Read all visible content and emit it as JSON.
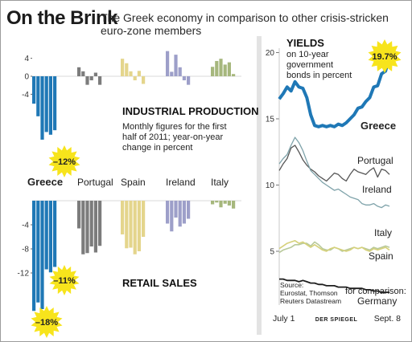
{
  "header": {
    "title": "On the Brink",
    "subtitle": "The Greek economy in comparison to other crisis-stricken euro-zone members"
  },
  "chart_data": [
    {
      "type": "bar",
      "title": "INDUSTRIAL PRODUCTION",
      "description": [
        "Monthly figures for the first",
        "half of 2011; year-on-year",
        "change in percent"
      ],
      "yticks": [
        "4",
        "0",
        "-4"
      ],
      "ylim": [
        -14.5,
        6.5
      ],
      "countries": [
        {
          "name": "Greece",
          "color": "#1f78b6",
          "values": [
            -6.1,
            -8.9,
            -14.1,
            -12.4,
            -13.0,
            -12.0
          ]
        },
        {
          "name": "Portugal",
          "color": "#7c7c7c",
          "values": [
            2.0,
            1.1,
            -1.9,
            -0.9,
            0.8,
            -1.9
          ]
        },
        {
          "name": "Spain",
          "color": "#e4d58c",
          "values": [
            3.9,
            2.9,
            1.1,
            -0.9,
            1.2,
            -1.7
          ]
        },
        {
          "name": "Ireland",
          "color": "#9d9fc9",
          "values": [
            5.6,
            1.0,
            4.8,
            2.0,
            -0.9,
            -1.9
          ]
        },
        {
          "name": "Italy",
          "color": "#a6b77d",
          "values": [
            2.1,
            3.4,
            3.9,
            2.6,
            3.1,
            0.5
          ]
        }
      ],
      "callout": {
        "country": "Greece",
        "label": "–12%"
      }
    },
    {
      "type": "bar",
      "title": "RETAIL SALES",
      "yticks": [
        "-4",
        "-8",
        "-12"
      ],
      "ylim": [
        -18.5,
        0
      ],
      "countries": [
        {
          "name": "Greece",
          "color": "#1f78b6",
          "values": [
            -18.3,
            -16.9,
            -18.0,
            -11.4,
            -11.9,
            -11.0
          ]
        },
        {
          "name": "Portugal",
          "color": "#7c7c7c",
          "values": [
            -4.6,
            -8.9,
            -8.7,
            -7.6,
            -8.6,
            -7.5
          ]
        },
        {
          "name": "Spain",
          "color": "#e4d58c",
          "values": [
            -5.6,
            -7.9,
            -7.8,
            -8.9,
            -8.4,
            -6.0
          ]
        },
        {
          "name": "Ireland",
          "color": "#9d9fc9",
          "values": [
            -3.8,
            -5.1,
            -2.8,
            -4.3,
            -3.8,
            -3.0
          ]
        },
        {
          "name": "Italy",
          "color": "#a6b77d",
          "values": [
            -0.6,
            -0.3,
            -1.1,
            -0.5,
            -0.8,
            -1.3
          ]
        }
      ],
      "callout": {
        "country": "Greece",
        "labels": [
          "–11%",
          "–18%"
        ]
      }
    },
    {
      "type": "line",
      "title": "YIELDS",
      "description": [
        "on 10-year",
        "government",
        "bonds in percent"
      ],
      "yticks": [
        "20",
        "15",
        "10",
        "5"
      ],
      "ylim": [
        1.5,
        22
      ],
      "x_labels": [
        "July 1",
        "Sept. 8"
      ],
      "series": [
        {
          "name": "Greece",
          "color": "#1f78b6",
          "values": [
            16.5,
            16.9,
            17.4,
            17.1,
            17.8,
            17.4,
            17.3,
            16.6,
            15.3,
            14.5,
            14.4,
            14.5,
            14.4,
            14.5,
            14.4,
            14.6,
            14.5,
            14.7,
            15.0,
            15.3,
            15.8,
            15.9,
            16.3,
            16.6,
            17.4,
            17.5,
            18.4,
            18.6,
            19.7
          ],
          "callout": "19.7%"
        },
        {
          "name": "Portugal",
          "color": "#555555",
          "values": [
            11.1,
            11.6,
            12.0,
            12.8,
            13.0,
            12.5,
            11.9,
            11.5,
            11.2,
            11.0,
            10.7,
            10.5,
            10.3,
            10.6,
            10.9,
            10.8,
            10.5,
            10.3,
            10.8,
            11.2,
            11.0,
            10.9,
            10.8,
            11.1,
            11.3,
            10.6,
            11.2,
            11.1,
            10.8
          ]
        },
        {
          "name": "Ireland",
          "color": "#7fa3aa",
          "values": [
            11.6,
            12.0,
            12.3,
            13.0,
            13.6,
            13.2,
            12.6,
            11.8,
            11.1,
            10.8,
            10.5,
            10.2,
            10.0,
            9.8,
            9.6,
            9.7,
            9.5,
            9.3,
            9.1,
            9.0,
            8.9,
            8.6,
            8.5,
            8.5,
            8.6,
            8.4,
            8.3,
            8.5,
            8.4
          ]
        },
        {
          "name": "Italy",
          "color": "#b8c99a",
          "values": [
            4.9,
            5.1,
            5.2,
            5.3,
            5.5,
            5.5,
            5.6,
            5.6,
            5.4,
            5.7,
            5.5,
            5.2,
            5.1,
            5.1,
            5.3,
            5.2,
            5.0,
            5.1,
            5.2,
            5.3,
            5.2,
            5.3,
            5.2,
            5.1,
            5.3,
            5.2,
            5.3,
            5.4,
            5.3
          ]
        },
        {
          "name": "Spain",
          "color": "#d6d17a",
          "values": [
            5.2,
            5.4,
            5.6,
            5.7,
            5.8,
            5.6,
            5.7,
            5.5,
            5.3,
            5.5,
            5.3,
            5.1,
            5.0,
            5.2,
            5.3,
            5.2,
            5.1,
            5.0,
            5.1,
            5.3,
            5.2,
            5.3,
            5.1,
            5.0,
            5.2,
            5.1,
            5.2,
            5.3,
            5.1
          ]
        },
        {
          "name": "Germany",
          "color": "#1e1e1e",
          "values": [
            2.9,
            2.9,
            2.8,
            2.8,
            2.8,
            2.7,
            2.8,
            2.7,
            2.6,
            2.6,
            2.5,
            2.5,
            2.4,
            2.4,
            2.4,
            2.3,
            2.3,
            2.3,
            2.2,
            2.2,
            2.2,
            2.2,
            2.1,
            2.1,
            2.0,
            2.0,
            1.9,
            1.9,
            1.9
          ],
          "label_prefix": "for comparison:"
        }
      ],
      "source": [
        "Source:",
        "Eurostat, Thomson",
        "Reuters Datastream"
      ],
      "credit": "DER SPIEGEL"
    }
  ]
}
